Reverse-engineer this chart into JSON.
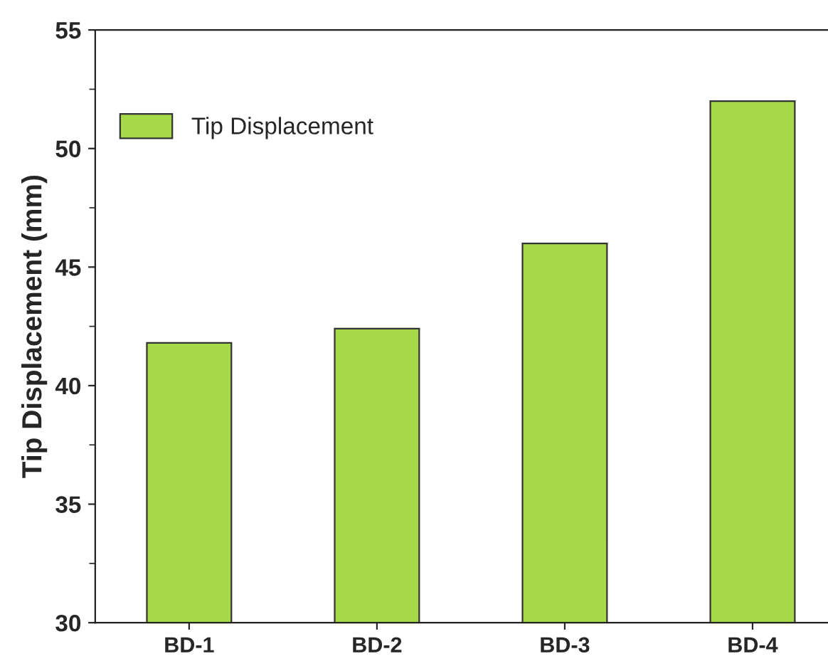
{
  "chart_data": {
    "type": "bar",
    "ylabel": "Tip Displacement (mm)",
    "categories": [
      "BD-1",
      "BD-2",
      "BD-3",
      "BD-4"
    ],
    "series": [
      {
        "name": "Tip Displacement",
        "color": "#a6d94a",
        "values": [
          41.8,
          42.4,
          46.0,
          52.0
        ]
      }
    ],
    "ylim": [
      30,
      55
    ],
    "yticks": [
      30,
      35,
      40,
      45,
      50,
      55
    ],
    "grid": false,
    "legend": "top left"
  }
}
